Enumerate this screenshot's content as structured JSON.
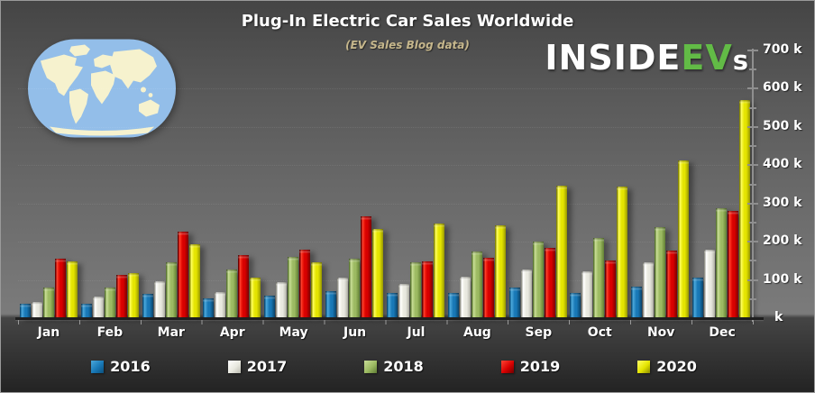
{
  "title": "Plug-In Electric Car Sales Worldwide",
  "subtitle": "(EV Sales Blog data)",
  "logo": {
    "prefix": "INSIDE",
    "ev": "EV",
    "suffix": "s"
  },
  "map_icon": "world-map",
  "colors": {
    "background_top": "#454545",
    "background_mid": "#7b7b7b",
    "background_bottom": "#232323",
    "title_text": "#ffffff",
    "subtitle_text": "#c6b78c",
    "logo_green": "#62bb46",
    "axis": "#8f8f8f",
    "map_ocean": "#93bee9",
    "map_land": "#f6f2ce"
  },
  "chart_data": {
    "type": "bar",
    "title": "Plug-In Electric Car Sales Worldwide",
    "subtitle": "(EV Sales Blog data)",
    "unit": "thousands of cars",
    "categories": [
      "Jan",
      "Feb",
      "Mar",
      "Apr",
      "May",
      "Jun",
      "Jul",
      "Aug",
      "Sep",
      "Oct",
      "Nov",
      "Dec"
    ],
    "series": [
      {
        "name": "2016",
        "color": "#1878b6",
        "values": [
          37,
          38,
          64,
          51,
          58,
          71,
          67,
          66,
          81,
          66,
          83,
          107
        ]
      },
      {
        "name": "2017",
        "color": "#e9e9e0",
        "values": [
          43,
          57,
          97,
          69,
          95,
          105,
          89,
          108,
          127,
          123,
          145,
          178
        ]
      },
      {
        "name": "2018",
        "color": "#9cba62",
        "values": [
          80,
          81,
          145,
          127,
          160,
          156,
          145,
          174,
          200,
          209,
          237,
          288
        ]
      },
      {
        "name": "2019",
        "color": "#d80000",
        "values": [
          155,
          113,
          227,
          166,
          180,
          266,
          149,
          157,
          184,
          150,
          176,
          280
        ]
      },
      {
        "name": "2020",
        "color": "#e4e400",
        "values": [
          148,
          119,
          193,
          107,
          146,
          233,
          247,
          243,
          346,
          344,
          413,
          570
        ]
      }
    ],
    "ylim": [
      0,
      700
    ],
    "y_major_step": 100,
    "y_minor_step": 50,
    "y_tick_labels": [
      "700 k",
      "600 k",
      "500 k",
      "400 k",
      "300 k",
      "200 k",
      "100 k",
      "k"
    ],
    "axis_side": "right",
    "grid": "faint-dotted-horizontal",
    "legend_position": "bottom"
  }
}
